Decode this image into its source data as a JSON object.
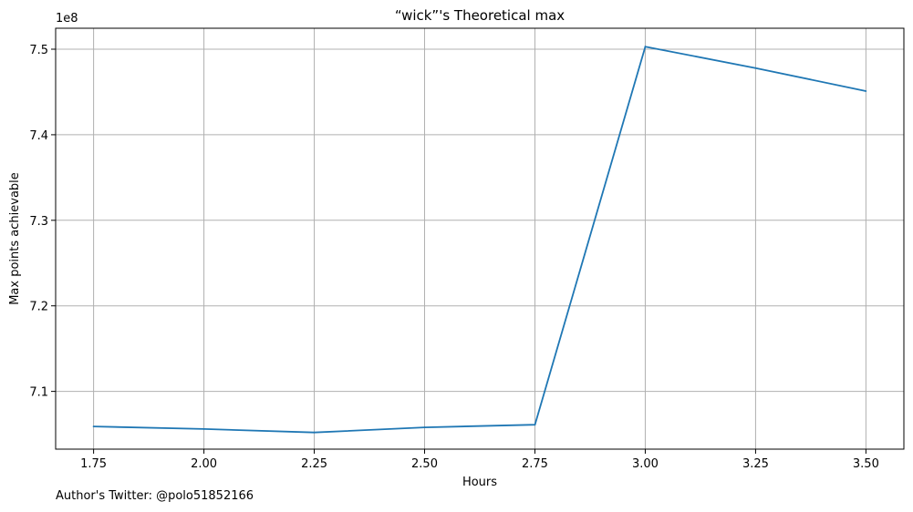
{
  "chart_data": {
    "type": "line",
    "title": "“wick”'s Theoretical max",
    "xlabel": "Hours",
    "ylabel": "Max points achievable",
    "y_multiplier_label": "1e8",
    "x": [
      1.75,
      2.0,
      2.25,
      2.5,
      2.75,
      3.0,
      3.25,
      3.5
    ],
    "series": [
      {
        "values": [
          7.059,
          7.056,
          7.052,
          7.058,
          7.061,
          7.503,
          7.478,
          7.451
        ]
      }
    ],
    "xlim": [
      1.664,
      3.586
    ],
    "ylim": [
      7.0325,
      7.5245
    ],
    "xticks": [
      1.75,
      2.0,
      2.25,
      2.5,
      2.75,
      3.0,
      3.25,
      3.5
    ],
    "xtick_labels": [
      "1.75",
      "2.00",
      "2.25",
      "2.50",
      "2.75",
      "3.00",
      "3.25",
      "3.50"
    ],
    "yticks": [
      7.1,
      7.2,
      7.3,
      7.4,
      7.5
    ],
    "ytick_labels": [
      "7.1",
      "7.2",
      "7.3",
      "7.4",
      "7.5"
    ],
    "grid": true,
    "colors": {
      "line": "#1f77b4",
      "grid": "#b0b0b0",
      "axes": "#000000"
    }
  },
  "footer": {
    "text": "Author's Twitter: @polo51852166"
  }
}
